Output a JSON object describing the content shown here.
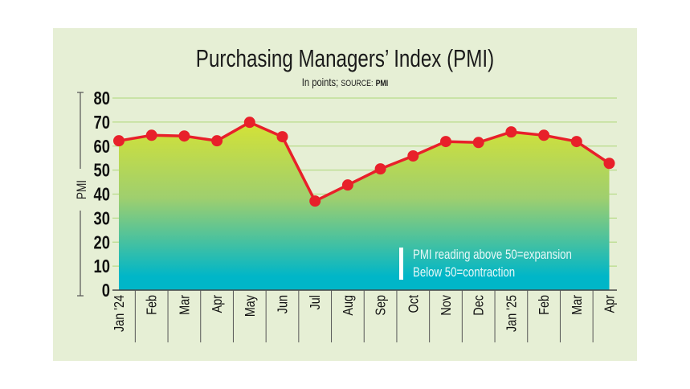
{
  "chart_data": {
    "type": "area",
    "title": "Purchasing Managers’ Index (PMI)",
    "subtitle_prefix": "In points;",
    "source_label": "SOURCE:",
    "source": "PMI",
    "ylabel": "PMI",
    "xlabel": "",
    "ylim": [
      0,
      80
    ],
    "yticks": [
      "0",
      "10",
      "20",
      "30",
      "40",
      "50",
      "60",
      "70",
      "80"
    ],
    "grid": true,
    "categories": [
      "Jan '24",
      "Feb",
      "Mar",
      "Apr",
      "May",
      "Jun",
      "Jul",
      "Aug",
      "Sep",
      "Oct",
      "Nov",
      "Dec",
      "Jan '25",
      "Feb",
      "Mar",
      "Apr"
    ],
    "series": [
      {
        "name": "PMI",
        "values": [
          62.2,
          64.5,
          64.2,
          62.2,
          69.9,
          63.9,
          37.1,
          43.8,
          50.5,
          55.9,
          61.9,
          61.5,
          65.9,
          64.5,
          61.9,
          52.8
        ]
      }
    ],
    "annotation": [
      "PMI reading above 50=expansion",
      "Below 50=contraction"
    ],
    "colors": {
      "line": "#e8202a",
      "fill_top": "#d4e236",
      "fill_bottom": "#00b6c8",
      "grid": "#b8dc8a",
      "background": "#e6efd5"
    }
  }
}
